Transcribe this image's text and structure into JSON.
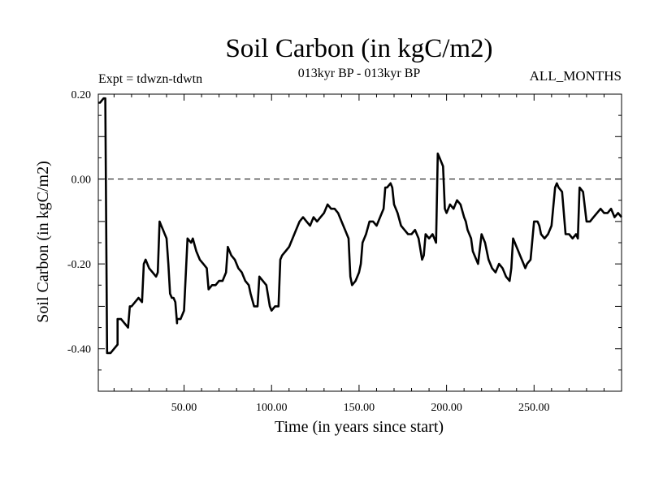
{
  "header": {
    "title": "Soil Carbon (in kgC/m2)",
    "experiment": "Expt = tdwzn-tdwtn",
    "period": "013kyr BP - 013kyr BP",
    "months": "ALL_MONTHS"
  },
  "chart_data": {
    "type": "line",
    "title": "Soil Carbon (in kgC/m2)",
    "xlabel": "Time (in years since start)",
    "ylabel": "Soil Carbon (in kgC/m2)",
    "xlim": [
      1,
      300
    ],
    "ylim": [
      -0.5,
      0.2
    ],
    "x_ticks": [
      50,
      100,
      150,
      200,
      250
    ],
    "x_tick_labels": [
      "50.00",
      "100.00",
      "150.00",
      "200.00",
      "250.00"
    ],
    "y_ticks": [
      0.2,
      0.0,
      -0.2,
      -0.4
    ],
    "y_tick_labels": [
      "0.20",
      "0.00",
      "-0.20",
      "-0.40"
    ],
    "reference_line": {
      "y": 0.0,
      "style": "dashed"
    },
    "grid": false,
    "series": [
      {
        "color": "#000000",
        "x": [
          1,
          2,
          3,
          4,
          5,
          6,
          8,
          10,
          12,
          12,
          14,
          16,
          18,
          19,
          20,
          22,
          24,
          26,
          27,
          28,
          30,
          32,
          34,
          35,
          36,
          37,
          38,
          39,
          40,
          41,
          42,
          43,
          44,
          45,
          46,
          46,
          48,
          50,
          52,
          54,
          55,
          57,
          59,
          61,
          63,
          64,
          66,
          68,
          70,
          72,
          74,
          75,
          77,
          79,
          81,
          83,
          85,
          87,
          88,
          90,
          92,
          93,
          95,
          97,
          99,
          100,
          102,
          104,
          105,
          106,
          108,
          110,
          112,
          114,
          116,
          118,
          120,
          122,
          124,
          126,
          128,
          130,
          132,
          134,
          136,
          138,
          140,
          142,
          144,
          145,
          146,
          148,
          150,
          151,
          152,
          154,
          156,
          158,
          160,
          162,
          164,
          165,
          166,
          168,
          169,
          170,
          172,
          174,
          176,
          178,
          180,
          182,
          184,
          186,
          187,
          188,
          190,
          192,
          194,
          195,
          196,
          198,
          199,
          200,
          202,
          204,
          206,
          208,
          210,
          211,
          212,
          214,
          215,
          216,
          218,
          220,
          222,
          224,
          226,
          228,
          230,
          232,
          234,
          236,
          237,
          238,
          240,
          242,
          244,
          245,
          246,
          248,
          250,
          252,
          253,
          254,
          256,
          258,
          260,
          262,
          263,
          264,
          266,
          268,
          270,
          272,
          274,
          275,
          276,
          278,
          280,
          282,
          284,
          286,
          288,
          290,
          292,
          294,
          296,
          298,
          300
        ],
        "y": [
          0.18,
          0.18,
          0.185,
          0.19,
          0.19,
          -0.41,
          -0.41,
          -0.4,
          -0.39,
          -0.33,
          -0.33,
          -0.34,
          -0.35,
          -0.3,
          -0.3,
          -0.29,
          -0.28,
          -0.29,
          -0.2,
          -0.19,
          -0.21,
          -0.22,
          -0.23,
          -0.22,
          -0.1,
          -0.11,
          -0.12,
          -0.13,
          -0.14,
          -0.2,
          -0.27,
          -0.28,
          -0.28,
          -0.29,
          -0.34,
          -0.33,
          -0.33,
          -0.31,
          -0.14,
          -0.15,
          -0.14,
          -0.17,
          -0.19,
          -0.2,
          -0.21,
          -0.26,
          -0.25,
          -0.25,
          -0.24,
          -0.24,
          -0.22,
          -0.16,
          -0.18,
          -0.19,
          -0.21,
          -0.22,
          -0.24,
          -0.25,
          -0.27,
          -0.3,
          -0.3,
          -0.23,
          -0.24,
          -0.25,
          -0.3,
          -0.31,
          -0.3,
          -0.3,
          -0.19,
          -0.18,
          -0.17,
          -0.16,
          -0.14,
          -0.12,
          -0.1,
          -0.09,
          -0.1,
          -0.11,
          -0.09,
          -0.1,
          -0.09,
          -0.08,
          -0.06,
          -0.07,
          -0.07,
          -0.08,
          -0.1,
          -0.12,
          -0.14,
          -0.23,
          -0.25,
          -0.24,
          -0.22,
          -0.2,
          -0.15,
          -0.13,
          -0.1,
          -0.1,
          -0.11,
          -0.09,
          -0.07,
          -0.02,
          -0.02,
          -0.01,
          -0.02,
          -0.06,
          -0.08,
          -0.11,
          -0.12,
          -0.13,
          -0.13,
          -0.12,
          -0.14,
          -0.19,
          -0.18,
          -0.13,
          -0.14,
          -0.13,
          -0.15,
          0.06,
          0.05,
          0.03,
          -0.07,
          -0.08,
          -0.06,
          -0.07,
          -0.05,
          -0.06,
          -0.09,
          -0.1,
          -0.12,
          -0.14,
          -0.17,
          -0.18,
          -0.2,
          -0.13,
          -0.15,
          -0.19,
          -0.21,
          -0.22,
          -0.2,
          -0.21,
          -0.23,
          -0.24,
          -0.21,
          -0.14,
          -0.16,
          -0.18,
          -0.2,
          -0.21,
          -0.2,
          -0.19,
          -0.1,
          -0.1,
          -0.11,
          -0.13,
          -0.14,
          -0.13,
          -0.11,
          -0.02,
          -0.01,
          -0.02,
          -0.03,
          -0.13,
          -0.13,
          -0.14,
          -0.13,
          -0.14,
          -0.02,
          -0.03,
          -0.1,
          -0.1,
          -0.09,
          -0.08,
          -0.07,
          -0.08,
          -0.08,
          -0.07,
          -0.09,
          -0.08,
          -0.09
        ]
      }
    ]
  }
}
